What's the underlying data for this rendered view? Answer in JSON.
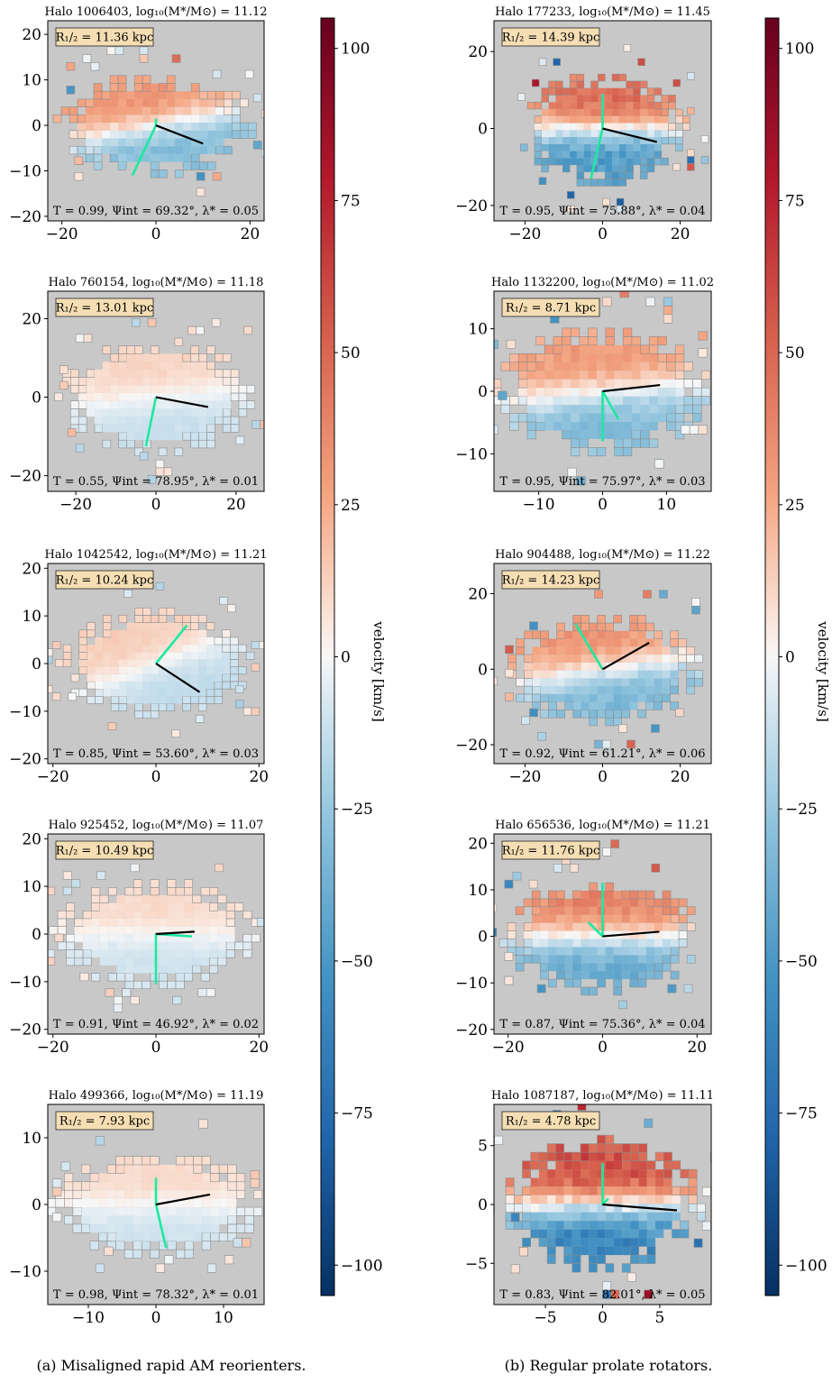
{
  "captions": {
    "left": "(a) Misaligned rapid AM reorienters.",
    "right": "(b) Regular prolate rotators."
  },
  "colorbar": {
    "label": "velocity [km/s]",
    "range": [
      -105,
      105
    ],
    "ticks": [
      -100,
      -75,
      -50,
      -25,
      0,
      25,
      50,
      75,
      100
    ],
    "tick_labels": [
      "−100",
      "−75",
      "−50",
      "−25",
      "0",
      "25",
      "50",
      "75",
      "100"
    ],
    "colormap": "RdBu_r",
    "colors": {
      "negative": "#053061",
      "zero": "#f7f7f7",
      "positive": "#67001f"
    }
  },
  "colors": {
    "background": "#c8c8c8",
    "minor_axis": "#1de9a0",
    "major_axis": "#000000",
    "label_box": "#f5deb3",
    "cell_edge": "#8c8c8c"
  },
  "chart_data": [
    {
      "type": "heatmap",
      "column": "a",
      "title": "Halo 1006403, log₁₀(M*/M⊙) = 11.12",
      "r_half": "R₁/₂ = 11.36 kpc",
      "stats": "T = 0.99, Ψint = 69.32°, λ* = 0.05",
      "xlim": [
        -23,
        23
      ],
      "ylim": [
        -21,
        23
      ],
      "xticks": [
        -20,
        0,
        20
      ],
      "yticks": [
        -20,
        -10,
        0,
        10,
        20
      ],
      "xtick_labels": [
        "−20",
        "0",
        "20"
      ],
      "ytick_labels": [
        "−20",
        "−10",
        "0",
        "10",
        "20"
      ],
      "extent": [
        19,
        10
      ],
      "vamp": 38,
      "tilt": 0.2,
      "seed": 11,
      "major_axis_end": [
        10,
        -4
      ],
      "minor_axis_end": [
        -5,
        -11
      ],
      "minor_axis_top": [
        0,
        1.5
      ]
    },
    {
      "type": "heatmap",
      "column": "a",
      "title": "Halo 760154, log₁₀(M*/M⊙) = 11.18",
      "r_half": "R₁/₂ = 13.01 kpc",
      "stats": "T = 0.55, Ψint = 78.95°, λ* = 0.01",
      "xlim": [
        -27,
        27
      ],
      "ylim": [
        -24,
        27
      ],
      "xticks": [
        -20,
        0,
        20
      ],
      "yticks": [
        -20,
        0,
        20
      ],
      "xtick_labels": [
        "−20",
        "0",
        "20"
      ],
      "ytick_labels": [
        "−20",
        "0",
        "20"
      ],
      "extent": [
        22,
        13
      ],
      "vamp": 14,
      "tilt": 0.1,
      "seed": 23,
      "major_axis_end": [
        13,
        -2.5
      ],
      "minor_axis_end": [
        -2.5,
        -12.5
      ],
      "minor_axis_top": [
        0,
        0
      ]
    },
    {
      "type": "heatmap",
      "column": "a",
      "title": "Halo 1042542, log₁₀(M*/M⊙) = 11.21",
      "r_half": "R₁/₂ = 10.24 kpc",
      "stats": "T = 0.85, Ψint = 53.60°, λ* = 0.03",
      "xlim": [
        -21,
        21
      ],
      "ylim": [
        -21,
        21
      ],
      "xticks": [
        -20,
        0,
        20
      ],
      "yticks": [
        -20,
        -10,
        0,
        10,
        20
      ],
      "xtick_labels": [
        "−20",
        "0",
        "20"
      ],
      "ytick_labels": [
        "−20",
        "−10",
        "0",
        "10",
        "20"
      ],
      "extent": [
        17,
        10
      ],
      "vamp": 16,
      "tilt": 0.4,
      "seed": 37,
      "major_axis_end": [
        8.5,
        -6
      ],
      "minor_axis_end": [
        6,
        8
      ],
      "minor_axis_top": [
        0,
        0
      ]
    },
    {
      "type": "heatmap",
      "column": "a",
      "title": "Halo 925452, log₁₀(M*/M⊙) = 11.07",
      "r_half": "R₁/₂ = 10.49 kpc",
      "stats": "T = 0.91, Ψint = 46.92°, λ* = 0.02",
      "xlim": [
        -21,
        21
      ],
      "ylim": [
        -21,
        21
      ],
      "xticks": [
        -20,
        0,
        20
      ],
      "yticks": [
        -20,
        -10,
        0,
        10,
        20
      ],
      "xtick_labels": [
        "−20",
        "0",
        "20"
      ],
      "ytick_labels": [
        "−20",
        "−10",
        "0",
        "10",
        "20"
      ],
      "extent": [
        18,
        10
      ],
      "vamp": 12,
      "tilt": 0.0,
      "seed": 41,
      "major_axis_end": [
        7.5,
        0.5
      ],
      "minor_axis_end": [
        0,
        -10.5
      ],
      "minor_axis_top": [
        7,
        -0.5
      ]
    },
    {
      "type": "heatmap",
      "column": "a",
      "title": "Halo 499366, log₁₀(M*/M⊙) = 11.19",
      "r_half": "R₁/₂ = 7.93 kpc",
      "stats": "T = 0.98, Ψint = 78.32°, λ* = 0.01",
      "xlim": [
        -16,
        16
      ],
      "ylim": [
        -15,
        15
      ],
      "xticks": [
        -10,
        0,
        10
      ],
      "yticks": [
        -10,
        0,
        10
      ],
      "xtick_labels": [
        "−10",
        "0",
        "10"
      ],
      "ytick_labels": [
        "−10",
        "0",
        "10"
      ],
      "extent": [
        14,
        7
      ],
      "vamp": 12,
      "tilt": 0.0,
      "seed": 53,
      "major_axis_end": [
        8,
        1.5
      ],
      "minor_axis_end": [
        1.5,
        -6.5
      ],
      "minor_axis_top": [
        0,
        4
      ]
    },
    {
      "type": "heatmap",
      "column": "b",
      "title": "Halo 177233, log₁₀(M*/M⊙) = 11.45",
      "r_half": "R₁/₂ = 14.39 kpc",
      "stats": "T = 0.95, Ψint = 75.88°, λ* = 0.04",
      "xlim": [
        -28,
        28
      ],
      "ylim": [
        -24,
        28
      ],
      "xticks": [
        -20,
        0,
        20
      ],
      "yticks": [
        -20,
        0,
        20
      ],
      "xtick_labels": [
        "−20",
        "0",
        "20"
      ],
      "ytick_labels": [
        "−20",
        "0",
        "20"
      ],
      "extent": [
        20,
        13
      ],
      "vamp": 60,
      "tilt": 0.0,
      "seed": 67,
      "major_axis_end": [
        14,
        -3.5
      ],
      "minor_axis_end": [
        -3,
        -13
      ],
      "minor_axis_top": [
        0,
        9
      ]
    },
    {
      "type": "heatmap",
      "column": "b",
      "title": "Halo 1132200, log₁₀(M*/M⊙) = 11.02",
      "r_half": "R₁/₂ = 8.71 kpc",
      "stats": "T = 0.95, Ψint = 75.97°, λ* = 0.03",
      "xlim": [
        -17,
        17
      ],
      "ylim": [
        -16,
        16
      ],
      "xticks": [
        -10,
        0,
        10
      ],
      "yticks": [
        -10,
        0,
        10
      ],
      "xtick_labels": [
        "−10",
        "0",
        "10"
      ],
      "ytick_labels": [
        "−10",
        "0",
        "10"
      ],
      "extent": [
        15,
        9
      ],
      "vamp": 38,
      "tilt": 0.1,
      "seed": 79,
      "major_axis_end": [
        9,
        1
      ],
      "minor_axis_end": [
        0,
        -8
      ],
      "minor_axis_top": [
        2.5,
        -4.5
      ]
    },
    {
      "type": "heatmap",
      "column": "b",
      "title": "Halo 904488, log₁₀(M*/M⊙) = 11.22",
      "r_half": "R₁/₂ = 14.23 kpc",
      "stats": "T = 0.92, Ψint = 61.21°, λ* = 0.06",
      "xlim": [
        -28,
        28
      ],
      "ylim": [
        -25,
        28
      ],
      "xticks": [
        -20,
        0,
        20
      ],
      "yticks": [
        -20,
        0,
        20
      ],
      "xtick_labels": [
        "−20",
        "0",
        "20"
      ],
      "ytick_labels": [
        "−20",
        "0",
        "20"
      ],
      "extent": [
        23,
        13
      ],
      "vamp": 40,
      "tilt": 0.15,
      "seed": 83,
      "major_axis_end": [
        12,
        7
      ],
      "minor_axis_end": [
        -7,
        12
      ],
      "minor_axis_top": [
        0,
        0
      ]
    },
    {
      "type": "heatmap",
      "column": "b",
      "title": "Halo 656536, log₁₀(M*/M⊙) = 11.21",
      "r_half": "R₁/₂ = 11.76 kpc",
      "stats": "T = 0.87, Ψint = 75.36°, λ* = 0.04",
      "xlim": [
        -23,
        23
      ],
      "ylim": [
        -21,
        22
      ],
      "xticks": [
        -20,
        0,
        20
      ],
      "yticks": [
        -20,
        -10,
        0,
        10,
        20
      ],
      "xtick_labels": [
        "−20",
        "0",
        "20"
      ],
      "ytick_labels": [
        "−20",
        "−10",
        "0",
        "10",
        "20"
      ],
      "extent": [
        19,
        11
      ],
      "vamp": 48,
      "tilt": 0.0,
      "seed": 97,
      "major_axis_end": [
        12,
        1
      ],
      "minor_axis_end": [
        0,
        11.5
      ],
      "minor_axis_top": [
        -3,
        3
      ]
    },
    {
      "type": "heatmap",
      "column": "b",
      "title": "Halo 1087187, log₁₀(M*/M⊙) = 11.11",
      "r_half": "R₁/₂ = 4.78 kpc",
      "stats": "T = 0.83, Ψint = 82.01°, λ* = 0.05",
      "xlim": [
        -9.5,
        9.5
      ],
      "ylim": [
        -8.5,
        8.5
      ],
      "xticks": [
        -5,
        0,
        5
      ],
      "yticks": [
        -5,
        0,
        5
      ],
      "xtick_labels": [
        "−5",
        "0",
        "5"
      ],
      "ytick_labels": [
        "−5",
        "0",
        "5"
      ],
      "extent": [
        8,
        5
      ],
      "vamp": 75,
      "tilt": 0.0,
      "seed": 101,
      "major_axis_end": [
        6.5,
        -0.5
      ],
      "minor_axis_end": [
        0,
        3.5
      ],
      "minor_axis_top": [
        0.5,
        0.5
      ]
    }
  ]
}
